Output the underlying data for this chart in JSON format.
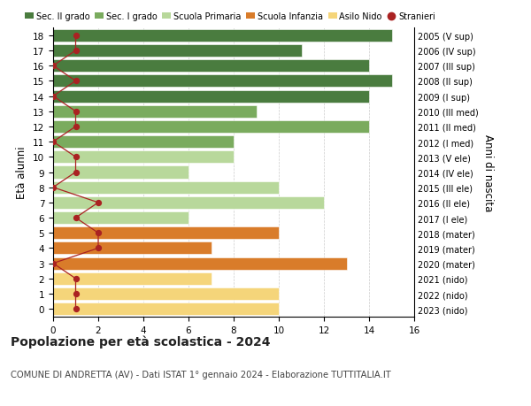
{
  "ages": [
    18,
    17,
    16,
    15,
    14,
    13,
    12,
    11,
    10,
    9,
    8,
    7,
    6,
    5,
    4,
    3,
    2,
    1,
    0
  ],
  "right_labels": [
    "2005 (V sup)",
    "2006 (IV sup)",
    "2007 (III sup)",
    "2008 (II sup)",
    "2009 (I sup)",
    "2010 (III med)",
    "2011 (II med)",
    "2012 (I med)",
    "2013 (V ele)",
    "2014 (IV ele)",
    "2015 (III ele)",
    "2016 (II ele)",
    "2017 (I ele)",
    "2018 (mater)",
    "2019 (mater)",
    "2020 (mater)",
    "2021 (nido)",
    "2022 (nido)",
    "2023 (nido)"
  ],
  "bar_values": [
    15,
    11,
    14,
    15,
    14,
    9,
    14,
    8,
    8,
    6,
    10,
    12,
    6,
    10,
    7,
    13,
    7,
    10,
    10
  ],
  "bar_colors": [
    "#4a7c3f",
    "#4a7c3f",
    "#4a7c3f",
    "#4a7c3f",
    "#4a7c3f",
    "#7aab5e",
    "#7aab5e",
    "#7aab5e",
    "#b8d89b",
    "#b8d89b",
    "#b8d89b",
    "#b8d89b",
    "#b8d89b",
    "#d97c2a",
    "#d97c2a",
    "#d97c2a",
    "#f5d57a",
    "#f5d57a",
    "#f5d57a"
  ],
  "stranieri_values": [
    1,
    1,
    0,
    1,
    0,
    1,
    1,
    0,
    1,
    1,
    0,
    2,
    1,
    2,
    2,
    0,
    1,
    1,
    1
  ],
  "legend_labels": [
    "Sec. II grado",
    "Sec. I grado",
    "Scuola Primaria",
    "Scuola Infanzia",
    "Asilo Nido",
    "Stranieri"
  ],
  "legend_colors": [
    "#4a7c3f",
    "#7aab5e",
    "#b8d89b",
    "#d97c2a",
    "#f5d57a",
    "#aa2222"
  ],
  "title": "Popolazione per età scolastica - 2024",
  "subtitle": "COMUNE DI ANDRETTA (AV) - Dati ISTAT 1° gennaio 2024 - Elaborazione TUTTITALIA.IT",
  "ylabel": "Età alunni",
  "right_ylabel": "Anni di nascita",
  "xlim": [
    0,
    16
  ],
  "xticks": [
    0,
    2,
    4,
    6,
    8,
    10,
    12,
    14,
    16
  ],
  "grid_color": "#cccccc"
}
